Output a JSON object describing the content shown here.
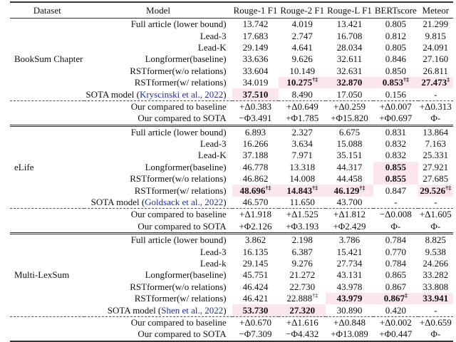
{
  "colors": {
    "highlight": "#fbe6ef",
    "citation": "#1f2fa8"
  },
  "header": [
    "Dataset",
    "Model",
    "Rouge-1 F1",
    "Rouge-2 F1",
    "Rouge-L F1",
    "BERTscore",
    "Meteor"
  ],
  "sections": [
    {
      "dataset": "BookSum Chapter",
      "rows": [
        {
          "model": "Full article (lower bound)",
          "cells": [
            {
              "v": "13.742"
            },
            {
              "v": "4.019"
            },
            {
              "v": "13.421"
            },
            {
              "v": "0.805"
            },
            {
              "v": "21.299"
            }
          ]
        },
        {
          "model": "Lead-3",
          "cells": [
            {
              "v": "17.683"
            },
            {
              "v": "2.747"
            },
            {
              "v": "16.708"
            },
            {
              "v": "0.812"
            },
            {
              "v": "9.815"
            }
          ]
        },
        {
          "model": "Lead-K",
          "cells": [
            {
              "v": "29.149"
            },
            {
              "v": "4.641"
            },
            {
              "v": "28.034"
            },
            {
              "v": "0.805"
            },
            {
              "v": "24.091"
            }
          ]
        },
        {
          "model": "Longformer(baseline)",
          "cells": [
            {
              "v": "33.636"
            },
            {
              "v": "9.626"
            },
            {
              "v": "32.611"
            },
            {
              "v": "0.846"
            },
            {
              "v": "27.160"
            }
          ]
        },
        {
          "model": "RSTformer(w/o relations)",
          "cells": [
            {
              "v": "33.604"
            },
            {
              "v": "10.149"
            },
            {
              "v": "32.631"
            },
            {
              "v": "0.850"
            },
            {
              "v": "26.811"
            }
          ]
        },
        {
          "model": "RSTformer(w/ relations)",
          "cells": [
            {
              "v": "34.019"
            },
            {
              "v": "10.275",
              "sup": "†‡",
              "bold": true,
              "hl": true
            },
            {
              "v": "32.870",
              "bold": true,
              "hl": true
            },
            {
              "v": "0.853",
              "sup": "†‡",
              "bold": true,
              "hl": true
            },
            {
              "v": "27.473",
              "sup": "‡",
              "bold": true,
              "hl": true
            }
          ]
        },
        {
          "model_prefix": "SOTA model (",
          "cite": "Kryscinski et al., 2022",
          "model_suffix": ")",
          "cells": [
            {
              "v": "37.510",
              "bold": true,
              "hl": true
            },
            {
              "v": "8.490"
            },
            {
              "v": "17.050"
            },
            {
              "v": "0.156"
            },
            {
              "v": "-"
            }
          ]
        }
      ],
      "compare": [
        {
          "label": "Our compared to baseline",
          "cells": [
            "+Δ0.383",
            "+Δ0.649",
            "+Δ0.259",
            "+Δ0.007",
            "+Δ0.313"
          ]
        },
        {
          "label": "Our compared to SOTA",
          "cells": [
            "−Φ3.491",
            "+Φ1.785",
            "+Φ15.820",
            "+Φ0.697",
            "Φ-"
          ]
        }
      ]
    },
    {
      "dataset": "eLife",
      "rows": [
        {
          "model": "Full article (lower bound)",
          "cells": [
            {
              "v": "6.893"
            },
            {
              "v": "2.327"
            },
            {
              "v": "6.675"
            },
            {
              "v": "0.831"
            },
            {
              "v": "13.864"
            }
          ]
        },
        {
          "model": "Lead-3",
          "cells": [
            {
              "v": "16.266"
            },
            {
              "v": "3.634"
            },
            {
              "v": "15.088"
            },
            {
              "v": "0.832"
            },
            {
              "v": "7.163"
            }
          ]
        },
        {
          "model": "Lead-K",
          "cells": [
            {
              "v": "37.188"
            },
            {
              "v": "7.971"
            },
            {
              "v": "35.151"
            },
            {
              "v": "0.832"
            },
            {
              "v": "25.331"
            }
          ]
        },
        {
          "model": "Longformer(baseline)",
          "cells": [
            {
              "v": "46.778"
            },
            {
              "v": "13.318"
            },
            {
              "v": "44.317"
            },
            {
              "v": "0.855",
              "bold": true,
              "hl": true
            },
            {
              "v": "27.921"
            }
          ]
        },
        {
          "model": "RSTformer(w/o relations)",
          "cells": [
            {
              "v": "46.862"
            },
            {
              "v": "14.008"
            },
            {
              "v": "44.458"
            },
            {
              "v": "0.855",
              "bold": true,
              "hl": true
            },
            {
              "v": "27.685"
            }
          ]
        },
        {
          "model": "RSTformer(w/ relations)",
          "cells": [
            {
              "v": "48.696",
              "sup": "†‡",
              "bold": true,
              "hl": true
            },
            {
              "v": "14.843",
              "sup": "†‡",
              "bold": true,
              "hl": true
            },
            {
              "v": "46.129",
              "sup": "†‡",
              "bold": true,
              "hl": true
            },
            {
              "v": "0.847"
            },
            {
              "v": "29.526",
              "sup": "†‡",
              "bold": true,
              "hl": true
            }
          ]
        },
        {
          "model_prefix": "SOTA model (",
          "cite": "Goldsack et al., 2022",
          "model_suffix": ")",
          "cells": [
            {
              "v": "46.570"
            },
            {
              "v": "11.650"
            },
            {
              "v": "43.700"
            },
            {
              "v": "-"
            },
            {
              "v": "-"
            }
          ]
        }
      ],
      "compare": [
        {
          "label": "Our compared to baseline",
          "cells": [
            "+Δ1.918",
            "+Δ1.525",
            "+Δ1.812",
            "−Δ0.008",
            "+Δ1.605"
          ]
        },
        {
          "label": "Our compared to SOTA",
          "cells": [
            "+Φ2.126",
            "+Φ3.193",
            "+Φ2.429",
            "Φ-",
            "Φ-"
          ]
        }
      ]
    },
    {
      "dataset": "Multi-LexSum",
      "rows": [
        {
          "model": "Full article (lower bound)",
          "cells": [
            {
              "v": "3.862"
            },
            {
              "v": "2.198"
            },
            {
              "v": "3.786"
            },
            {
              "v": "0.784"
            },
            {
              "v": "8.825"
            }
          ]
        },
        {
          "model": "Lead-3",
          "cells": [
            {
              "v": "16.135"
            },
            {
              "v": "6.387"
            },
            {
              "v": "15.421"
            },
            {
              "v": "0.770"
            },
            {
              "v": "9.538"
            }
          ]
        },
        {
          "model": "Lead-k",
          "cells": [
            {
              "v": "29.145"
            },
            {
              "v": "9.276"
            },
            {
              "v": "27.734"
            },
            {
              "v": "0.784"
            },
            {
              "v": "24.266"
            }
          ]
        },
        {
          "model": "Longformer(baseline)",
          "cells": [
            {
              "v": "45.751"
            },
            {
              "v": "21.272"
            },
            {
              "v": "43.131"
            },
            {
              "v": "0.865"
            },
            {
              "v": "33.282"
            }
          ]
        },
        {
          "model": "RSTformer(w/o relations)",
          "cells": [
            {
              "v": "46.424"
            },
            {
              "v": "22.730"
            },
            {
              "v": "43.978"
            },
            {
              "v": "0.867"
            },
            {
              "v": "33.808"
            }
          ]
        },
        {
          "model": "RSTformer(w/ relations)",
          "cells": [
            {
              "v": "46.421"
            },
            {
              "v": "22.888",
              "sup": "†‡"
            },
            {
              "v": "43.979",
              "bold": true,
              "hl": true
            },
            {
              "v": "0.867",
              "sup": "‡",
              "bold": true,
              "hl": true
            },
            {
              "v": "33.941",
              "bold": true,
              "hl": true
            }
          ]
        },
        {
          "model_prefix": "SOTA model (",
          "cite": "Shen et al., 2022",
          "model_suffix": ")",
          "cells": [
            {
              "v": "53.730",
              "bold": true,
              "hl": true
            },
            {
              "v": "27.320",
              "bold": true,
              "hl": true
            },
            {
              "v": "30.890"
            },
            {
              "v": "0.420"
            },
            {
              "v": "-"
            }
          ]
        }
      ],
      "compare": [
        {
          "label": "Our compared to baseline",
          "cells": [
            "+Δ0.670",
            "+Δ1.616",
            "+Δ0.848",
            "+Δ0.002",
            "+Δ0.659"
          ]
        },
        {
          "label": "Our compared to SOTA",
          "cells": [
            "−Φ7.309",
            "−Φ4.432",
            "+Φ13.089",
            "+Φ0.447",
            "Φ-"
          ]
        }
      ]
    }
  ]
}
